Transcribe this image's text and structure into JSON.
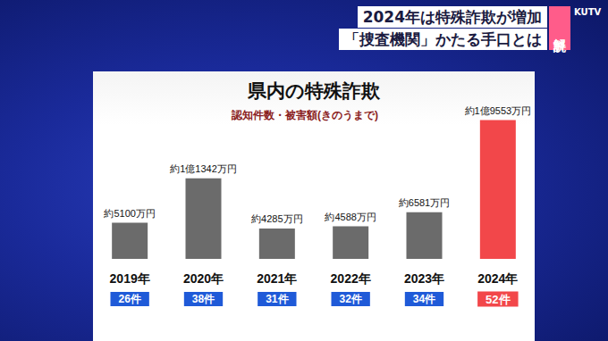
{
  "header": {
    "headline": "2024年は特殊詐欺が増加",
    "subheadline": "「捜査機関」かたる手口とは",
    "badge": "解説",
    "logo": "KUTV"
  },
  "chart_data": {
    "type": "bar",
    "title": "県内の特殊詐欺",
    "subtitle": "認知件数・被害額(きのうまで)",
    "categories": [
      "2019年",
      "2020年",
      "2021年",
      "2022年",
      "2023年",
      "2024年"
    ],
    "values": [
      5100,
      11342,
      4285,
      4588,
      6581,
      19553
    ],
    "value_labels": [
      "約5100万円",
      "約1億1342万円",
      "約4285万円",
      "約4588万円",
      "約6581万円",
      "約1億9553万円"
    ],
    "count_labels": [
      "26件",
      "38件",
      "31件",
      "32件",
      "34件",
      "52件"
    ],
    "colors": [
      "#6b6b6b",
      "#6b6b6b",
      "#6b6b6b",
      "#6b6b6b",
      "#6b6b6b",
      "#f2474a"
    ],
    "ylim": [
      0,
      20000
    ],
    "data_labels": true,
    "tick_labels": "x",
    "grid": false
  }
}
